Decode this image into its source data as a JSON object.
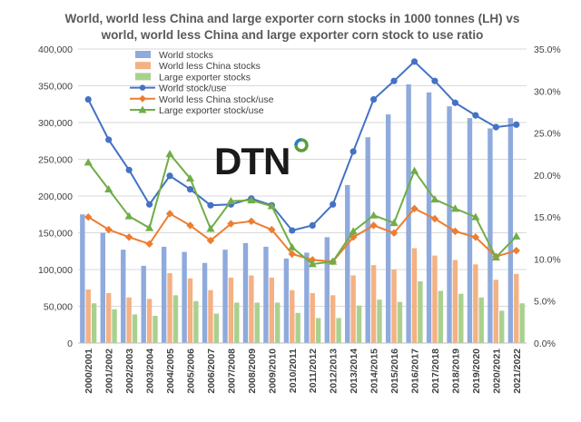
{
  "chart_data": {
    "type": "bar+line",
    "title_line1": "World, world less China and large exporter corn stocks in 1000 tonnes (LH) vs",
    "title_line2": "world, world less China and large exporter corn stock to use ratio",
    "categories": [
      "2000/2001",
      "2001/2002",
      "2002/2003",
      "2003/2004",
      "2004/2005",
      "2005/2006",
      "2006/2007",
      "2007/2008",
      "2008/2009",
      "2009/2010",
      "2010/2011",
      "2011/2012",
      "2012/2013",
      "2013/2014",
      "2014/2015",
      "2015/2016",
      "2016/2017",
      "2017/2018",
      "2018/2019",
      "2019/2020",
      "2020/2021",
      "2021/2022"
    ],
    "left_axis": {
      "min": 0,
      "max": 400000,
      "step": 50000,
      "tick_labels": [
        "0",
        "50,000",
        "100,000",
        "150,000",
        "200,000",
        "250,000",
        "300,000",
        "350,000",
        "400,000"
      ]
    },
    "right_axis": {
      "min": 0,
      "max": 35,
      "step": 5,
      "tick_labels": [
        "0.0%",
        "5.0%",
        "10.0%",
        "15.0%",
        "20.0%",
        "25.0%",
        "30.0%",
        "35.0%"
      ]
    },
    "bar_series": [
      {
        "name": "World stocks",
        "color": "#8faadc",
        "values": [
          175000,
          150000,
          127000,
          105000,
          131000,
          124000,
          109000,
          127000,
          136000,
          131000,
          115000,
          123000,
          144000,
          215000,
          280000,
          311000,
          352000,
          341000,
          322000,
          306000,
          292000,
          306000
        ]
      },
      {
        "name": "World less China stocks",
        "color": "#f4b183",
        "values": [
          73000,
          68000,
          62000,
          60000,
          95000,
          88000,
          72000,
          89000,
          92000,
          89000,
          72000,
          68000,
          65000,
          92000,
          106000,
          100000,
          129000,
          119000,
          113000,
          107000,
          86000,
          94000
        ]
      },
      {
        "name": "Large exporter stocks",
        "color": "#a9d18e",
        "values": [
          54000,
          46000,
          39000,
          37000,
          65000,
          57000,
          40000,
          55000,
          55000,
          55000,
          41000,
          34000,
          34000,
          51000,
          59000,
          56000,
          84000,
          71000,
          67000,
          62000,
          44000,
          54000
        ]
      }
    ],
    "line_series": [
      {
        "name": "World stock/use",
        "color": "#4472c4",
        "marker": "circle",
        "values": [
          29.0,
          24.2,
          20.6,
          16.5,
          19.9,
          18.3,
          16.4,
          16.5,
          17.2,
          16.4,
          13.4,
          14.0,
          16.5,
          22.8,
          29.0,
          31.2,
          33.5,
          31.2,
          28.6,
          27.1,
          25.7,
          26.0
        ]
      },
      {
        "name": "World less China stock/use",
        "color": "#ed7d31",
        "marker": "diamond",
        "values": [
          15.0,
          13.5,
          12.6,
          11.8,
          15.4,
          14.0,
          12.2,
          14.2,
          14.5,
          13.5,
          10.6,
          9.9,
          9.7,
          12.6,
          14.0,
          13.1,
          16.0,
          14.8,
          13.3,
          12.6,
          10.3,
          11.0
        ]
      },
      {
        "name": "Large exporter stock/use",
        "color": "#70ad47",
        "marker": "triangle",
        "values": [
          21.5,
          18.3,
          15.1,
          13.7,
          22.5,
          19.6,
          13.6,
          16.9,
          17.0,
          16.3,
          11.4,
          9.4,
          9.7,
          13.3,
          15.2,
          14.3,
          20.5,
          17.1,
          16.0,
          15.0,
          10.2,
          12.7
        ]
      }
    ],
    "logo_text": "DTN",
    "legend_position": "top-left inside plot"
  }
}
